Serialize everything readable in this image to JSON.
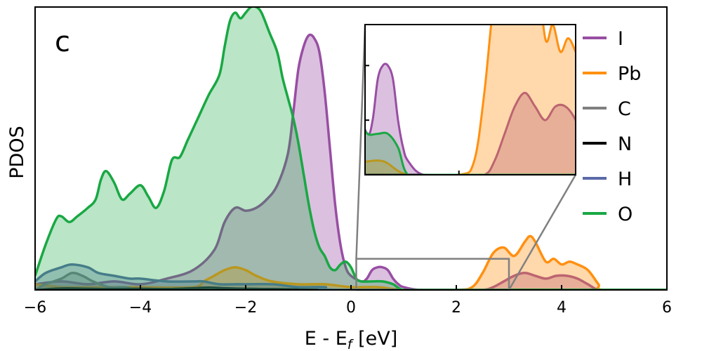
{
  "chart_data": {
    "type": "area",
    "panel_label": "c",
    "xlabel": "E - E",
    "xlabel_sub": "f",
    "xlabel_unit": " [eV]",
    "ylabel": "PDOS",
    "xlim": [
      -6,
      6
    ],
    "ylim": [
      0,
      1.0
    ],
    "xticks": [
      -6,
      -4,
      -2,
      0,
      2,
      4,
      6
    ],
    "xtick_labels": [
      "−6",
      "−4",
      "−2",
      "0",
      "2",
      "4",
      "6"
    ],
    "y_ticks_visible": false,
    "grid": false,
    "legend_position": "right",
    "series": [
      {
        "name": "I",
        "color": "#984ea3",
        "fill_opacity": 0.35,
        "points": [
          [
            -6,
            0.02
          ],
          [
            -5.5,
            0.03
          ],
          [
            -5.0,
            0.02
          ],
          [
            -4.5,
            0.03
          ],
          [
            -4.0,
            0.02
          ],
          [
            -3.5,
            0.04
          ],
          [
            -3.0,
            0.07
          ],
          [
            -2.6,
            0.14
          ],
          [
            -2.4,
            0.24
          ],
          [
            -2.2,
            0.29
          ],
          [
            -2.0,
            0.28
          ],
          [
            -1.8,
            0.29
          ],
          [
            -1.6,
            0.32
          ],
          [
            -1.4,
            0.37
          ],
          [
            -1.2,
            0.48
          ],
          [
            -1.1,
            0.62
          ],
          [
            -1.0,
            0.78
          ],
          [
            -0.9,
            0.86
          ],
          [
            -0.8,
            0.9
          ],
          [
            -0.7,
            0.89
          ],
          [
            -0.6,
            0.84
          ],
          [
            -0.5,
            0.7
          ],
          [
            -0.4,
            0.5
          ],
          [
            -0.3,
            0.3
          ],
          [
            -0.2,
            0.16
          ],
          [
            -0.1,
            0.08
          ],
          [
            0.0,
            0.05
          ],
          [
            0.2,
            0.03
          ],
          [
            0.3,
            0.04
          ],
          [
            0.4,
            0.07
          ],
          [
            0.5,
            0.08
          ],
          [
            0.6,
            0.08
          ],
          [
            0.7,
            0.07
          ],
          [
            0.8,
            0.04
          ],
          [
            0.9,
            0.02
          ],
          [
            1.0,
            0.01
          ],
          [
            1.3,
            0.0
          ],
          [
            2.0,
            0.0
          ],
          [
            2.5,
            0.0
          ],
          [
            2.7,
            0.01
          ],
          [
            2.9,
            0.03
          ],
          [
            3.1,
            0.05
          ],
          [
            3.3,
            0.06
          ],
          [
            3.5,
            0.05
          ],
          [
            3.7,
            0.04
          ],
          [
            3.9,
            0.05
          ],
          [
            4.1,
            0.05
          ],
          [
            4.3,
            0.04
          ],
          [
            4.5,
            0.02
          ],
          [
            4.7,
            0.0
          ],
          [
            5.0,
            0.0
          ],
          [
            6,
            0.0
          ]
        ]
      },
      {
        "name": "Pb",
        "color": "#ff9010",
        "fill_opacity": 0.35,
        "points": [
          [
            -6,
            0.02
          ],
          [
            -5.5,
            0.01
          ],
          [
            -5.0,
            0.01
          ],
          [
            -4.5,
            0.01
          ],
          [
            -4.0,
            0.01
          ],
          [
            -3.0,
            0.01
          ],
          [
            -2.8,
            0.03
          ],
          [
            -2.6,
            0.05
          ],
          [
            -2.4,
            0.07
          ],
          [
            -2.2,
            0.08
          ],
          [
            -2.0,
            0.07
          ],
          [
            -1.8,
            0.05
          ],
          [
            -1.5,
            0.03
          ],
          [
            -1.0,
            0.02
          ],
          [
            -0.5,
            0.02
          ],
          [
            0.0,
            0.01
          ],
          [
            0.5,
            0.01
          ],
          [
            1.0,
            0.0
          ],
          [
            2.0,
            0.0
          ],
          [
            2.3,
            0.01
          ],
          [
            2.5,
            0.06
          ],
          [
            2.7,
            0.13
          ],
          [
            2.9,
            0.15
          ],
          [
            3.1,
            0.12
          ],
          [
            3.3,
            0.17
          ],
          [
            3.4,
            0.19
          ],
          [
            3.5,
            0.17
          ],
          [
            3.7,
            0.1
          ],
          [
            3.85,
            0.11
          ],
          [
            4.0,
            0.09
          ],
          [
            4.15,
            0.1
          ],
          [
            4.3,
            0.09
          ],
          [
            4.5,
            0.07
          ],
          [
            4.7,
            0.02
          ],
          [
            4.8,
            0.0
          ],
          [
            6,
            0.0
          ]
        ]
      },
      {
        "name": "C",
        "color": "#808080",
        "fill_opacity": 0.35,
        "points": [
          [
            -6,
            0.0
          ],
          [
            -5.8,
            0.02
          ],
          [
            -5.5,
            0.04
          ],
          [
            -5.3,
            0.06
          ],
          [
            -5.1,
            0.05
          ],
          [
            -4.9,
            0.03
          ],
          [
            -4.6,
            0.01
          ],
          [
            -4.3,
            0.01
          ],
          [
            -4.0,
            0.0
          ],
          [
            -3.0,
            0.0
          ],
          [
            6,
            0.0
          ]
        ]
      },
      {
        "name": "N",
        "color": "#000000",
        "fill_opacity": 0.35,
        "points": [
          [
            -6,
            0.0
          ],
          [
            -5.5,
            0.005
          ],
          [
            -5.0,
            0.004
          ],
          [
            -4.5,
            0.003
          ],
          [
            -4.0,
            0.004
          ],
          [
            -3.5,
            0.003
          ],
          [
            -3.0,
            0.006
          ],
          [
            -2.7,
            0.008
          ],
          [
            -2.4,
            0.006
          ],
          [
            -2.0,
            0.004
          ],
          [
            -1.5,
            0.003
          ],
          [
            -1.0,
            0.002
          ],
          [
            0.0,
            0.0
          ],
          [
            6,
            0.0
          ]
        ]
      },
      {
        "name": "H",
        "color": "#5a6aa8",
        "fill_opacity": 0.35,
        "points": [
          [
            -6,
            0.03
          ],
          [
            -5.8,
            0.06
          ],
          [
            -5.5,
            0.08
          ],
          [
            -5.3,
            0.09
          ],
          [
            -5.0,
            0.08
          ],
          [
            -4.8,
            0.06
          ],
          [
            -4.5,
            0.05
          ],
          [
            -4.2,
            0.04
          ],
          [
            -4.0,
            0.04
          ],
          [
            -3.5,
            0.03
          ],
          [
            -3.0,
            0.03
          ],
          [
            -2.8,
            0.03
          ],
          [
            -2.5,
            0.02
          ],
          [
            -2.2,
            0.02
          ],
          [
            -2.0,
            0.02
          ],
          [
            -1.5,
            0.02
          ],
          [
            -1.0,
            0.01
          ],
          [
            -0.5,
            0.01
          ],
          [
            0.0,
            0.0
          ],
          [
            6,
            0.0
          ]
        ]
      },
      {
        "name": "O",
        "color": "#19a843",
        "fill_opacity": 0.3,
        "points": [
          [
            -6,
            0.05
          ],
          [
            -5.8,
            0.16
          ],
          [
            -5.6,
            0.25
          ],
          [
            -5.5,
            0.26
          ],
          [
            -5.35,
            0.24
          ],
          [
            -5.2,
            0.26
          ],
          [
            -5.0,
            0.29
          ],
          [
            -4.85,
            0.32
          ],
          [
            -4.75,
            0.39
          ],
          [
            -4.65,
            0.42
          ],
          [
            -4.5,
            0.38
          ],
          [
            -4.35,
            0.32
          ],
          [
            -4.2,
            0.34
          ],
          [
            -4.0,
            0.37
          ],
          [
            -3.85,
            0.33
          ],
          [
            -3.7,
            0.29
          ],
          [
            -3.55,
            0.35
          ],
          [
            -3.4,
            0.46
          ],
          [
            -3.25,
            0.47
          ],
          [
            -3.1,
            0.53
          ],
          [
            -2.9,
            0.61
          ],
          [
            -2.7,
            0.69
          ],
          [
            -2.5,
            0.76
          ],
          [
            -2.4,
            0.86
          ],
          [
            -2.3,
            0.95
          ],
          [
            -2.2,
            0.98
          ],
          [
            -2.1,
            0.96
          ],
          [
            -2.0,
            0.98
          ],
          [
            -1.9,
            1.0
          ],
          [
            -1.8,
            1.0
          ],
          [
            -1.7,
            0.98
          ],
          [
            -1.55,
            0.91
          ],
          [
            -1.4,
            0.84
          ],
          [
            -1.3,
            0.75
          ],
          [
            -1.2,
            0.68
          ],
          [
            -1.1,
            0.61
          ],
          [
            -1.0,
            0.52
          ],
          [
            -0.9,
            0.41
          ],
          [
            -0.8,
            0.3
          ],
          [
            -0.7,
            0.21
          ],
          [
            -0.6,
            0.15
          ],
          [
            -0.5,
            0.12
          ],
          [
            -0.4,
            0.08
          ],
          [
            -0.3,
            0.07
          ],
          [
            -0.2,
            0.09
          ],
          [
            -0.1,
            0.1
          ],
          [
            0.0,
            0.08
          ],
          [
            0.1,
            0.04
          ],
          [
            0.2,
            0.03
          ],
          [
            0.4,
            0.03
          ],
          [
            0.6,
            0.03
          ],
          [
            0.8,
            0.02
          ],
          [
            1.0,
            0.0
          ],
          [
            1.5,
            0.0
          ],
          [
            6,
            0.0
          ]
        ]
      }
    ],
    "inset": {
      "xlim": [
        0.15,
        4.3
      ],
      "ylim": [
        0,
        0.11
      ],
      "xticks": [
        2
      ],
      "yticks": [
        0.04,
        0.08
      ],
      "zoom_box": {
        "x": [
          0.1,
          3.0
        ],
        "y": [
          0,
          0.11
        ]
      }
    }
  }
}
